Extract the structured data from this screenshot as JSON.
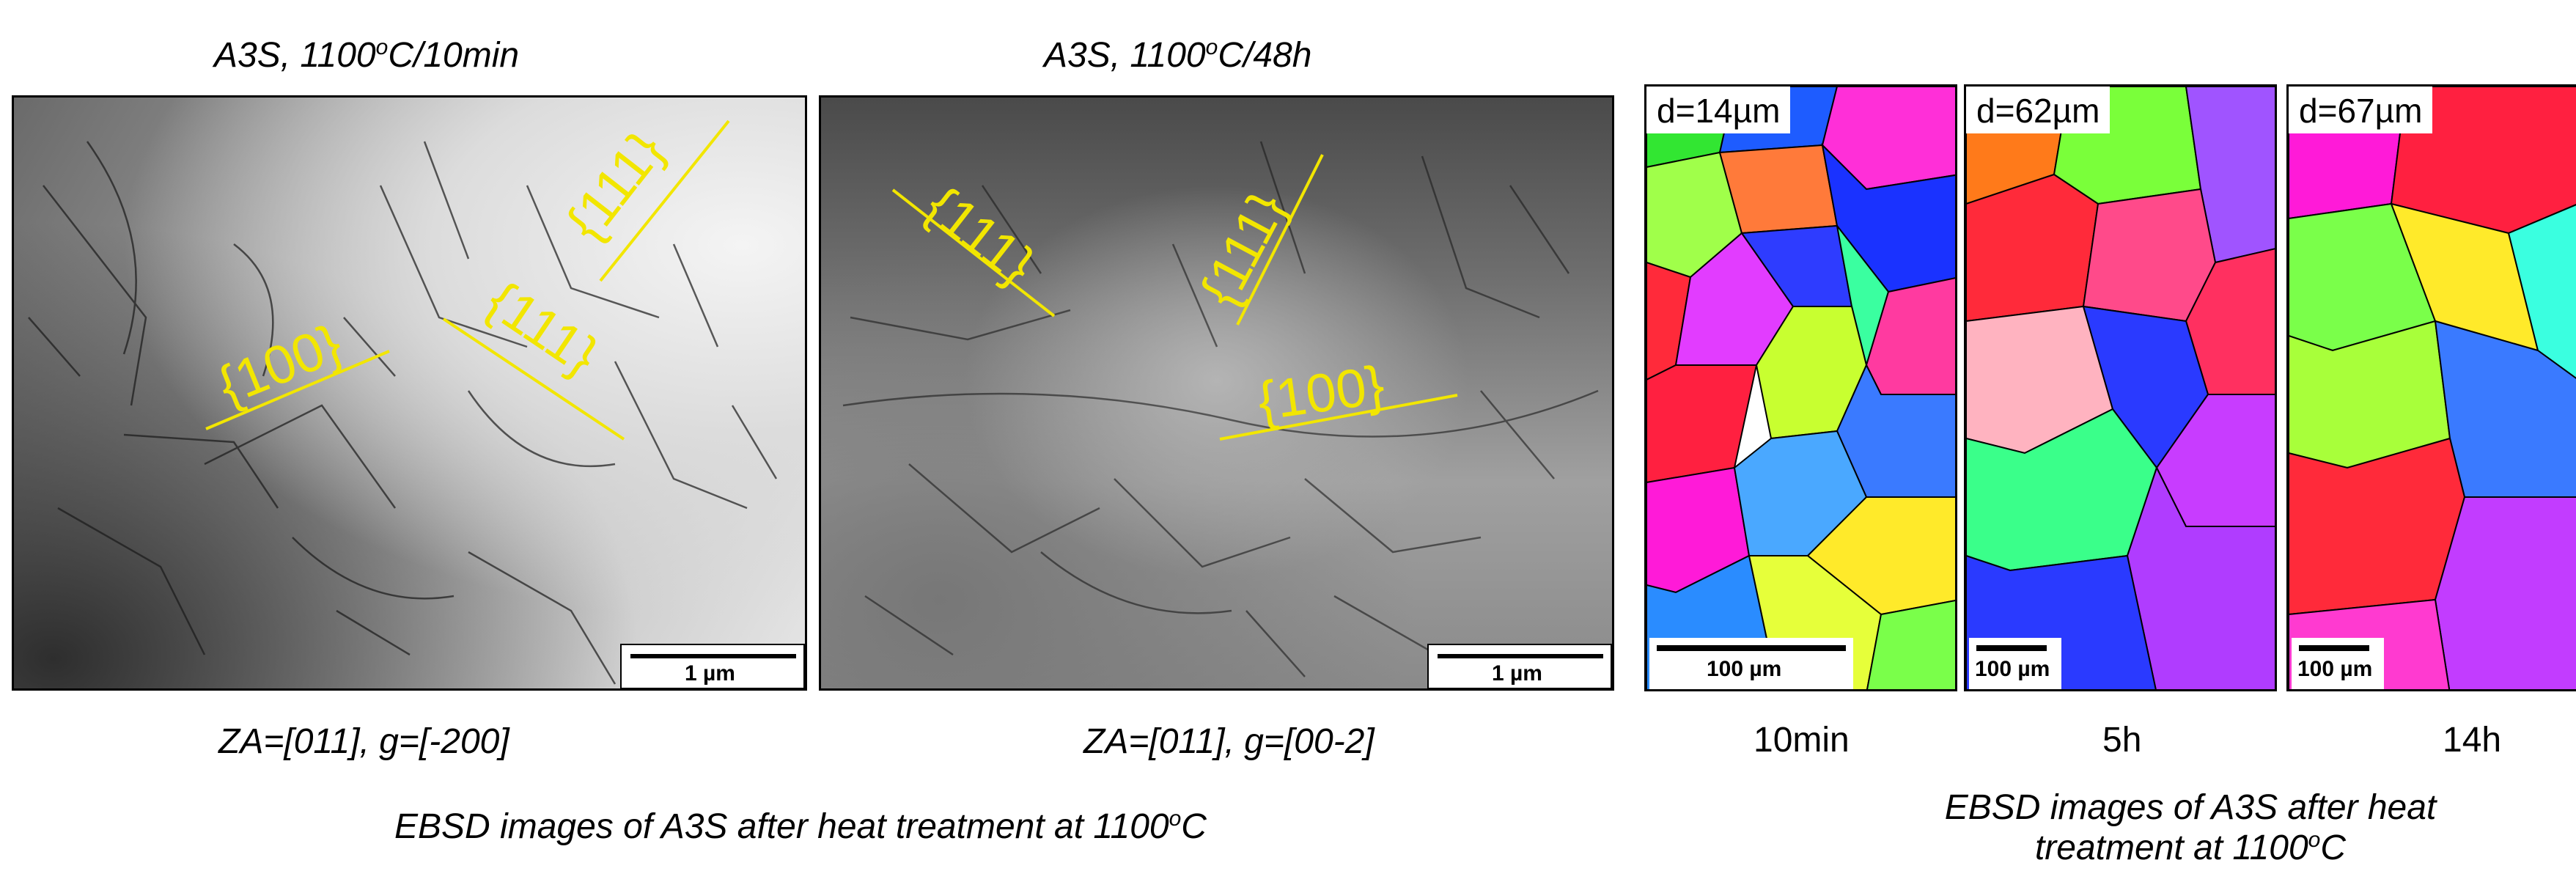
{
  "tem_left": {
    "title": "A3S, 1100",
    "title_sup": "o",
    "title_suffix": "C/10min",
    "caption": "ZA=[011], g=[-200]",
    "scale": "1 µm",
    "annotations": [
      "{111}",
      "{100}",
      "{111}"
    ]
  },
  "tem_right": {
    "title": "A3S, 1100",
    "title_sup": "o",
    "title_suffix": "C/48h",
    "caption": "ZA=[011], g=[00-2]",
    "scale": "1 µm",
    "annotations": [
      "{111}",
      "{111}",
      "{100}"
    ]
  },
  "ebsd": [
    {
      "d_label": "d=14µm",
      "scale": "100 µm",
      "time": "10min"
    },
    {
      "d_label": "d=62µm",
      "scale": "100 µm",
      "time": "5h"
    },
    {
      "d_label": "d=67µm",
      "scale": "100 µm",
      "time": "14h"
    }
  ],
  "bottom_left_caption": {
    "text": "EBSD images of A3S after heat treatment at 1100",
    "sup": "o",
    "suffix": "C"
  },
  "bottom_right_caption": {
    "line1": "EBSD images of A3S after heat",
    "line2": "treatment at 1100",
    "sup": "o",
    "suffix": "C"
  },
  "colors": {
    "annotation": "#f2e600"
  }
}
